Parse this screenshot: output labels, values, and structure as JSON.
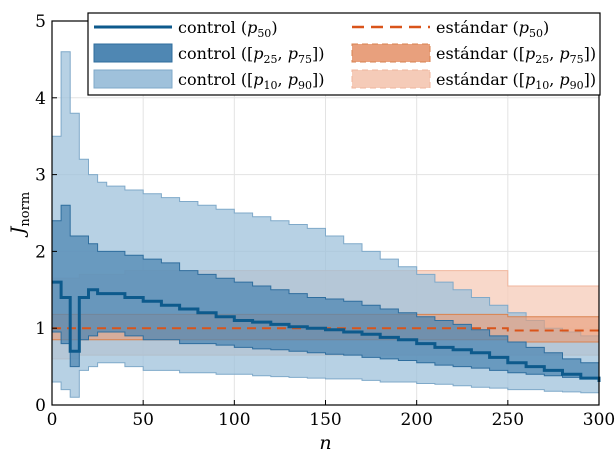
{
  "chart_data": {
    "type": "area",
    "title": "",
    "xlabel": "n",
    "ylabel": "J_norm",
    "xlim": [
      0,
      300
    ],
    "ylim": [
      0,
      5
    ],
    "xticks": [
      0,
      50,
      100,
      150,
      200,
      250,
      300
    ],
    "yticks": [
      0,
      1,
      2,
      3,
      4,
      5
    ],
    "grid": true,
    "legend_position": "top-right",
    "legend_columns": 2,
    "colors": {
      "control": "#0d5a8c",
      "control_band_25_75": "#4f87b3",
      "control_band_10_90": "#9fc1db",
      "estandar": "#d9541a",
      "estandar_band_25_75": "#e8a07d",
      "estandar_band_10_90": "#f5cbb8"
    },
    "legend": [
      {
        "main": "control (",
        "sub_base": "p",
        "sub": "50",
        "tail": ")",
        "style": "line",
        "series": "control"
      },
      {
        "main": "estándar (",
        "sub_base": "p",
        "sub": "50",
        "tail": ")",
        "style": "dashed",
        "series": "estandar"
      },
      {
        "main": "control ([",
        "sub_base": "p",
        "sub": "25",
        "mid": ", ",
        "sub_base2": "p",
        "sub2": "75",
        "tail": "])",
        "style": "band-dark",
        "series": "control"
      },
      {
        "main": "estándar ([",
        "sub_base": "p",
        "sub": "25",
        "mid": ", ",
        "sub_base2": "p",
        "sub2": "75",
        "tail": "])",
        "style": "band-dark",
        "series": "estandar"
      },
      {
        "main": "control ([",
        "sub_base": "p",
        "sub": "10",
        "mid": ", ",
        "sub_base2": "p",
        "sub2": "90",
        "tail": "])",
        "style": "band-light",
        "series": "control"
      },
      {
        "main": "estándar ([",
        "sub_base": "p",
        "sub": "10",
        "mid": ", ",
        "sub_base2": "p",
        "sub2": "90",
        "tail": "])",
        "style": "band-light",
        "series": "estandar"
      }
    ],
    "series": [
      {
        "name": "control",
        "x": [
          0,
          5,
          10,
          15,
          20,
          25,
          30,
          40,
          50,
          60,
          70,
          80,
          90,
          100,
          110,
          120,
          130,
          140,
          150,
          160,
          170,
          180,
          190,
          200,
          210,
          220,
          230,
          240,
          250,
          260,
          270,
          280,
          290,
          300
        ],
        "p10": [
          0.3,
          0.2,
          0.1,
          0.45,
          0.5,
          0.55,
          0.55,
          0.5,
          0.45,
          0.45,
          0.42,
          0.42,
          0.4,
          0.4,
          0.38,
          0.37,
          0.36,
          0.35,
          0.34,
          0.34,
          0.32,
          0.3,
          0.3,
          0.28,
          0.27,
          0.25,
          0.23,
          0.22,
          0.2,
          0.2,
          0.18,
          0.17,
          0.16,
          0.15
        ],
        "p25": [
          0.95,
          0.8,
          0.5,
          0.85,
          0.9,
          0.95,
          0.95,
          0.9,
          0.85,
          0.85,
          0.8,
          0.8,
          0.78,
          0.75,
          0.73,
          0.72,
          0.7,
          0.68,
          0.66,
          0.65,
          0.62,
          0.6,
          0.58,
          0.55,
          0.52,
          0.5,
          0.48,
          0.45,
          0.42,
          0.4,
          0.38,
          0.36,
          0.34,
          0.32
        ],
        "p50": [
          1.6,
          1.4,
          0.7,
          1.4,
          1.5,
          1.45,
          1.45,
          1.4,
          1.35,
          1.3,
          1.25,
          1.2,
          1.15,
          1.1,
          1.08,
          1.05,
          1.02,
          1.0,
          0.98,
          0.95,
          0.92,
          0.88,
          0.85,
          0.8,
          0.75,
          0.72,
          0.68,
          0.62,
          0.55,
          0.5,
          0.45,
          0.4,
          0.35,
          0.3
        ],
        "p75": [
          2.4,
          2.6,
          2.2,
          2.2,
          2.1,
          2.0,
          2.0,
          1.95,
          1.9,
          1.85,
          1.75,
          1.7,
          1.65,
          1.6,
          1.55,
          1.5,
          1.45,
          1.4,
          1.38,
          1.35,
          1.3,
          1.25,
          1.2,
          1.15,
          1.1,
          1.05,
          0.98,
          0.9,
          0.82,
          0.75,
          0.68,
          0.6,
          0.55,
          0.5
        ],
        "p90": [
          3.5,
          4.6,
          3.8,
          3.2,
          3.0,
          2.9,
          2.85,
          2.8,
          2.75,
          2.7,
          2.65,
          2.6,
          2.55,
          2.5,
          2.45,
          2.4,
          2.35,
          2.3,
          2.2,
          2.1,
          2.0,
          1.9,
          1.8,
          1.7,
          1.6,
          1.5,
          1.4,
          1.3,
          1.2,
          1.1,
          1.0,
          0.95,
          0.9,
          0.85
        ]
      },
      {
        "name": "estándar",
        "x": [
          0,
          5,
          10,
          15,
          20,
          25,
          30,
          40,
          50,
          60,
          70,
          80,
          90,
          100,
          110,
          120,
          130,
          140,
          150,
          160,
          170,
          180,
          190,
          200,
          210,
          220,
          230,
          240,
          250,
          260,
          270,
          280,
          290,
          300
        ],
        "p10": [
          0.6,
          0.6,
          0.6,
          0.65,
          0.65,
          0.65,
          0.65,
          0.65,
          0.65,
          0.65,
          0.65,
          0.65,
          0.65,
          0.65,
          0.65,
          0.65,
          0.65,
          0.65,
          0.65,
          0.65,
          0.65,
          0.65,
          0.65,
          0.65,
          0.65,
          0.65,
          0.65,
          0.65,
          0.65,
          0.65,
          0.65,
          0.65,
          0.65,
          0.65
        ],
        "p25": [
          0.85,
          0.85,
          0.85,
          0.85,
          0.85,
          0.85,
          0.85,
          0.85,
          0.85,
          0.85,
          0.85,
          0.85,
          0.85,
          0.85,
          0.85,
          0.85,
          0.85,
          0.85,
          0.85,
          0.85,
          0.85,
          0.85,
          0.85,
          0.85,
          0.85,
          0.85,
          0.85,
          0.85,
          0.82,
          0.82,
          0.82,
          0.82,
          0.82,
          0.82
        ],
        "p50": [
          1.0,
          1.0,
          1.0,
          1.0,
          1.0,
          1.0,
          1.0,
          1.0,
          1.0,
          1.0,
          1.0,
          1.0,
          1.0,
          1.0,
          1.0,
          1.0,
          1.0,
          1.0,
          1.0,
          1.0,
          1.0,
          1.0,
          1.0,
          1.0,
          1.0,
          1.0,
          1.0,
          1.0,
          0.97,
          0.97,
          0.97,
          0.97,
          0.97,
          0.97
        ],
        "p75": [
          1.18,
          1.18,
          1.18,
          1.18,
          1.18,
          1.18,
          1.18,
          1.18,
          1.18,
          1.18,
          1.18,
          1.18,
          1.18,
          1.18,
          1.18,
          1.18,
          1.18,
          1.18,
          1.18,
          1.18,
          1.18,
          1.18,
          1.18,
          1.18,
          1.18,
          1.18,
          1.18,
          1.18,
          1.15,
          1.15,
          1.15,
          1.15,
          1.15,
          1.15
        ],
        "p90": [
          1.65,
          1.65,
          1.65,
          1.7,
          1.7,
          1.7,
          1.7,
          1.75,
          1.75,
          1.75,
          1.75,
          1.75,
          1.75,
          1.75,
          1.75,
          1.75,
          1.75,
          1.75,
          1.75,
          1.75,
          1.75,
          1.75,
          1.75,
          1.75,
          1.75,
          1.75,
          1.75,
          1.75,
          1.55,
          1.55,
          1.55,
          1.55,
          1.55,
          1.55
        ]
      }
    ]
  }
}
